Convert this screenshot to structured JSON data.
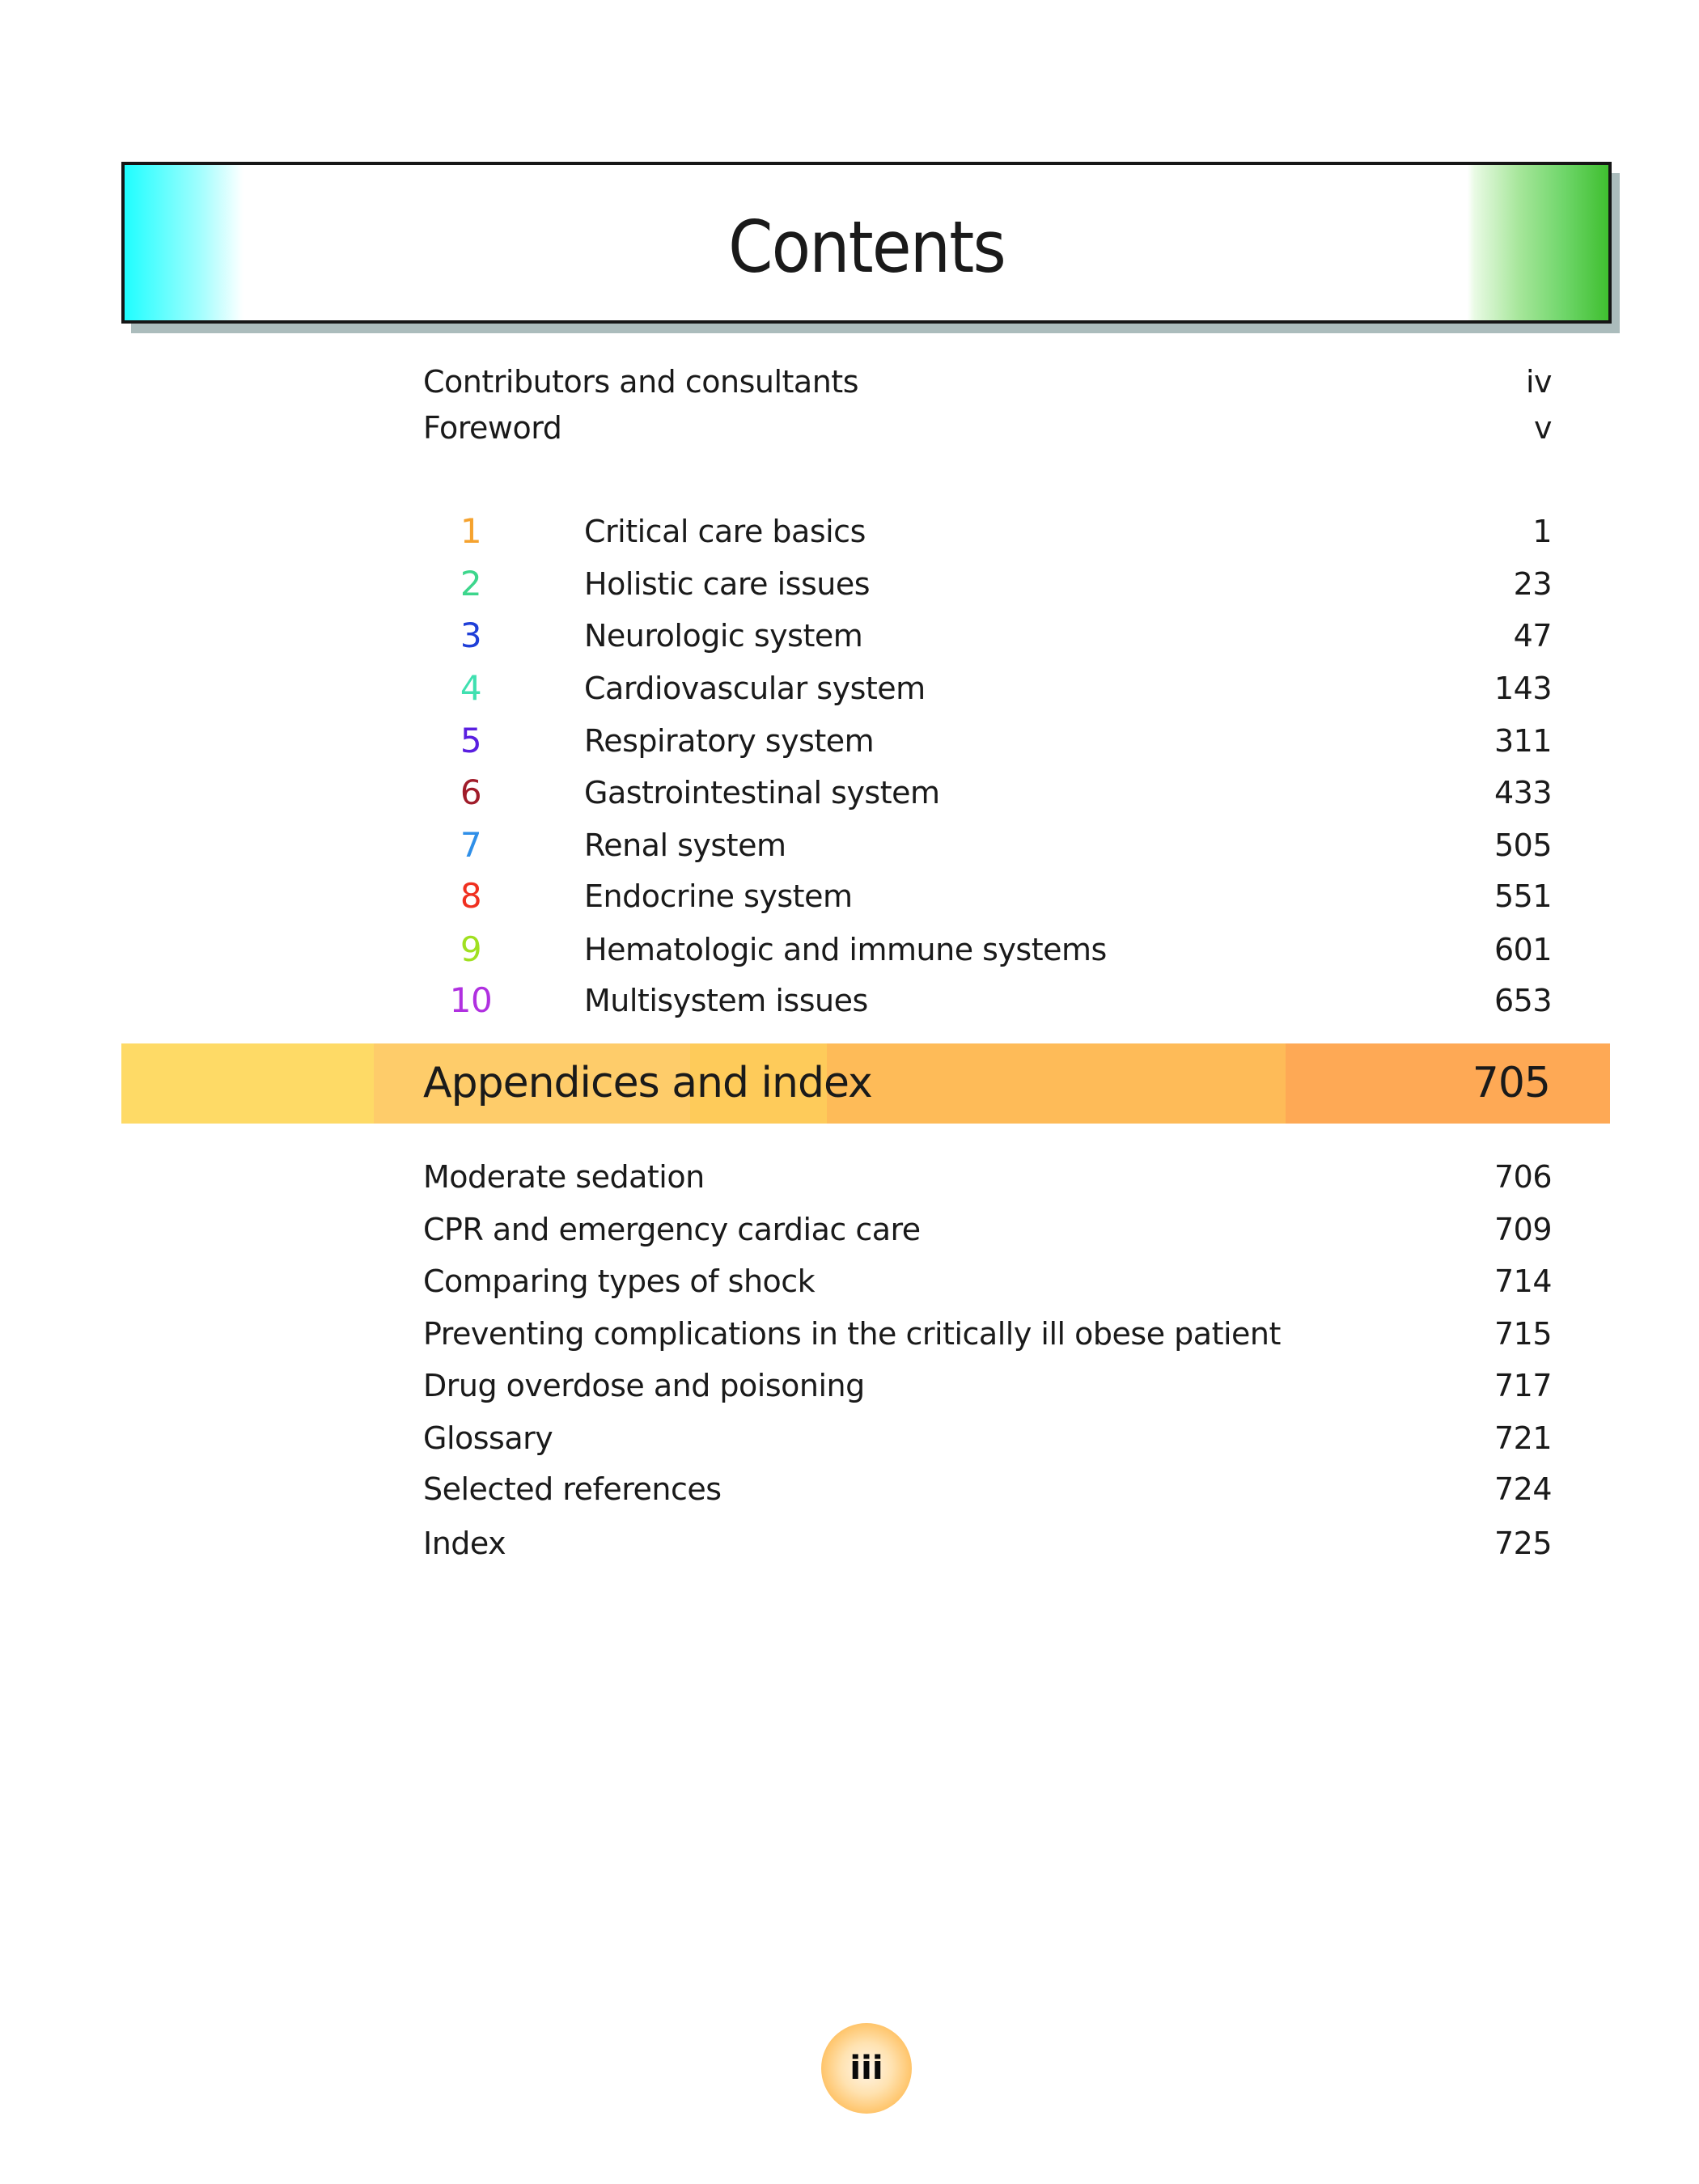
{
  "header": {
    "title": "Contents"
  },
  "front_matter": [
    {
      "title": "Contributors and consultants",
      "page": "iv"
    },
    {
      "title": "Foreword",
      "page": "v"
    }
  ],
  "chapters": [
    {
      "number": "1",
      "title": "Critical care basics",
      "page": "1",
      "color": "#f5a22e"
    },
    {
      "number": "2",
      "title": "Holistic care issues",
      "page": "23",
      "color": "#3dd68c"
    },
    {
      "number": "3",
      "title": "Neurologic system",
      "page": "47",
      "color": "#1f3fd8"
    },
    {
      "number": "4",
      "title": "Cardiovascular system",
      "page": "143",
      "color": "#3fe0b0"
    },
    {
      "number": "5",
      "title": "Respiratory system",
      "page": "311",
      "color": "#5a1fe0"
    },
    {
      "number": "6",
      "title": "Gastrointestinal system",
      "page": "433",
      "color": "#a01c2a"
    },
    {
      "number": "7",
      "title": "Renal system",
      "page": "505",
      "color": "#2f8fe8"
    },
    {
      "number": "8",
      "title": "Endocrine system",
      "page": "551",
      "color": "#f03020"
    },
    {
      "number": "9",
      "title": "Hematologic and immune systems",
      "page": "601",
      "color": "#a0e020"
    },
    {
      "number": "10",
      "title": "Multisystem issues",
      "page": "653",
      "color": "#b030e0"
    }
  ],
  "appendices_header": {
    "title": "Appendices and index",
    "page": "705"
  },
  "appendices": [
    {
      "title": "Moderate sedation",
      "page": "706"
    },
    {
      "title": "CPR and emergency cardiac care",
      "page": "709"
    },
    {
      "title": "Comparing types of shock",
      "page": "714"
    },
    {
      "title": "Preventing complications in the critically ill obese patient",
      "page": "715"
    },
    {
      "title": "Drug overdose and poisoning",
      "page": "717"
    },
    {
      "title": "Glossary",
      "page": "721"
    },
    {
      "title": "Selected references",
      "page": "724"
    },
    {
      "title": "Index",
      "page": "725"
    }
  ],
  "page_number": "iii"
}
